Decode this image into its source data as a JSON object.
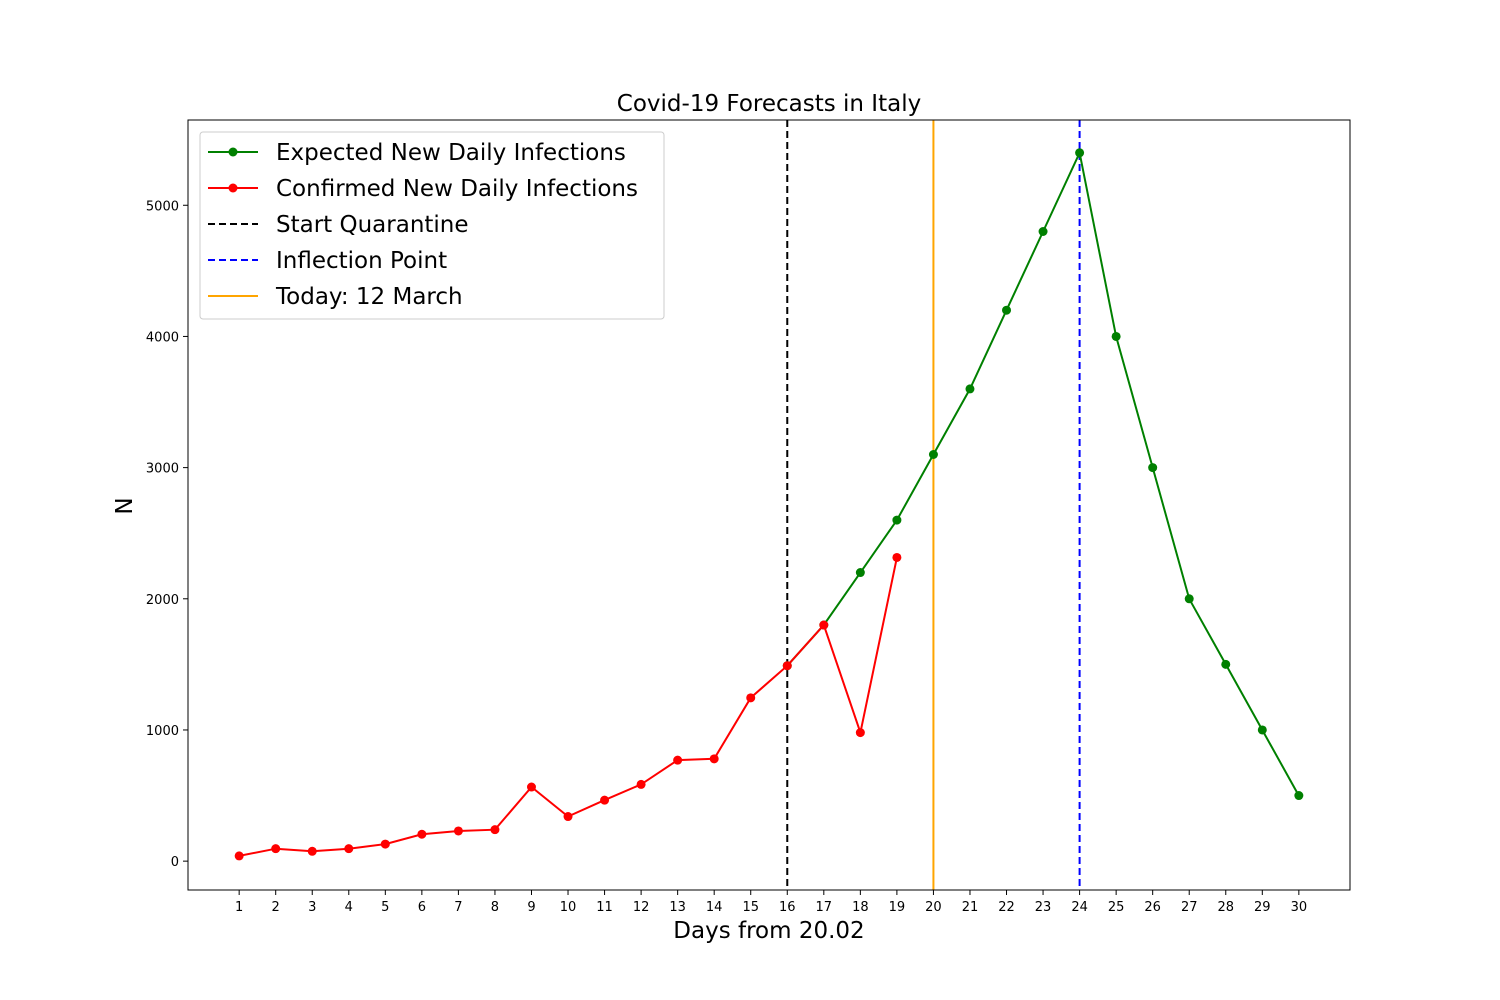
{
  "chart_data": {
    "type": "line",
    "title": "Covid-19 Forecasts in Italy",
    "xlabel": "Days from 20.02",
    "ylabel": "N",
    "xlim": [
      -0.4,
      31.4
    ],
    "ylim": [
      -220,
      5650
    ],
    "x_ticks": [
      1,
      2,
      3,
      4,
      5,
      6,
      7,
      8,
      9,
      10,
      11,
      12,
      13,
      14,
      15,
      16,
      17,
      18,
      19,
      20,
      21,
      22,
      23,
      24,
      25,
      26,
      27,
      28,
      29,
      30
    ],
    "y_ticks": [
      0,
      1000,
      2000,
      3000,
      4000,
      5000
    ],
    "grid": false,
    "legend_position": "top-left",
    "series": [
      {
        "name": "Expected New Daily Infections",
        "color": "#008000",
        "style": "line-marker",
        "x": [
          16,
          17,
          18,
          19,
          20,
          21,
          22,
          23,
          24,
          25,
          26,
          27,
          28,
          29,
          30
        ],
        "y": [
          1490,
          1800,
          2200,
          2600,
          3100,
          3600,
          4200,
          4800,
          5400,
          4000,
          3000,
          2000,
          1500,
          1000,
          500
        ]
      },
      {
        "name": "Confirmed New Daily Infections",
        "color": "#ff0000",
        "style": "line-marker",
        "x": [
          1,
          2,
          3,
          4,
          5,
          6,
          7,
          8,
          9,
          10,
          11,
          12,
          13,
          14,
          15,
          16,
          17,
          18,
          19
        ],
        "y": [
          40,
          95,
          75,
          95,
          130,
          205,
          230,
          240,
          565,
          340,
          465,
          585,
          770,
          780,
          1245,
          1490,
          1800,
          980,
          2315
        ]
      }
    ],
    "vlines": [
      {
        "name": "Start Quarantine",
        "x": 16,
        "color": "#000000",
        "dashed": true
      },
      {
        "name": "Inflection Point",
        "x": 24,
        "color": "#0000ff",
        "dashed": true
      },
      {
        "name": "Today: 12 March",
        "x": 20,
        "color": "#ffa500",
        "dashed": false
      }
    ],
    "legend_order": [
      {
        "label": "Expected New Daily Infections",
        "color": "#008000",
        "kind": "line-marker"
      },
      {
        "label": "Confirmed New Daily Infections",
        "color": "#ff0000",
        "kind": "line-marker"
      },
      {
        "label": "Start Quarantine",
        "color": "#000000",
        "kind": "dashed"
      },
      {
        "label": "Inflection Point",
        "color": "#0000ff",
        "kind": "dashed"
      },
      {
        "label": "Today: 12 March",
        "color": "#ffa500",
        "kind": "solid"
      }
    ]
  }
}
